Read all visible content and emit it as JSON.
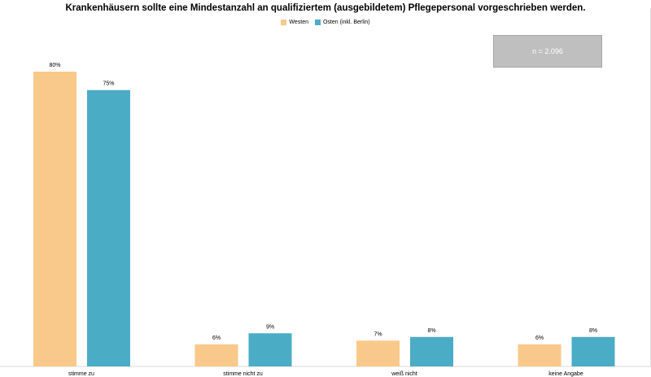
{
  "chart_data": {
    "type": "bar",
    "title": "Krankenhäusern sollte eine Mindestanzahl an qualifiziertem (ausgebildetem) Pflegepersonal vorgeschrieben werden.",
    "categories": [
      "stimme zu",
      "stimme nicht zu",
      "weiß nicht",
      "keine Angabe"
    ],
    "series": [
      {
        "name": "Westen",
        "values": [
          80,
          6,
          7,
          6
        ],
        "labels": [
          "80%",
          "6%",
          "7%",
          "6%"
        ],
        "color": "#f8c98a"
      },
      {
        "name": "Osten (inkl. Berlin)",
        "values": [
          75,
          9,
          8,
          8
        ],
        "labels": [
          "75%",
          "9%",
          "8%",
          "8%"
        ],
        "color": "#4bacc6"
      }
    ],
    "ylim": [
      0,
      80
    ],
    "grid": false,
    "legend_position": "top-center",
    "annotation": "n = 2.096"
  }
}
